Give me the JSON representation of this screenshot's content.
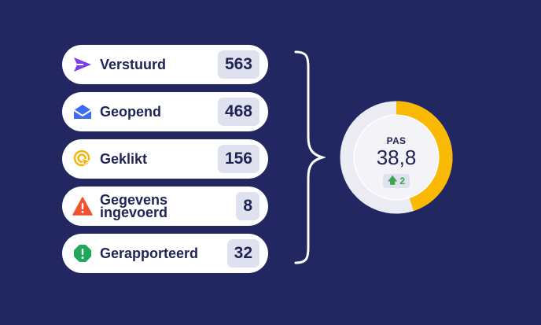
{
  "stats": [
    {
      "label": "Verstuurd",
      "count": "563",
      "icon": "send-icon",
      "icon_color": "#7b3df0"
    },
    {
      "label": "Geopend",
      "count": "468",
      "icon": "open-envelope-icon",
      "icon_color": "#3d6cf0"
    },
    {
      "label": "Geklikt",
      "count": "156",
      "icon": "click-cursor-icon",
      "icon_color": "#f3b40f"
    },
    {
      "label": "Gegevens ingevoerd",
      "count": "8",
      "icon": "warning-icon",
      "icon_color": "#f0532e"
    },
    {
      "label": "Gerapporteerd",
      "count": "32",
      "icon": "report-shield-icon",
      "icon_color": "#1ea85a"
    }
  ],
  "score": {
    "label": "PAS",
    "value": "38,8",
    "delta": "2",
    "delta_icon": "arrow-up-icon",
    "progress_fraction": 0.45,
    "ring_color": "#f9b905",
    "ring_track_color": "#ececf4",
    "delta_color": "#3aa64f"
  },
  "colors": {
    "background": "#222762",
    "card": "#ffffff",
    "badge": "#dfe2ee",
    "text": "#1f2454"
  }
}
